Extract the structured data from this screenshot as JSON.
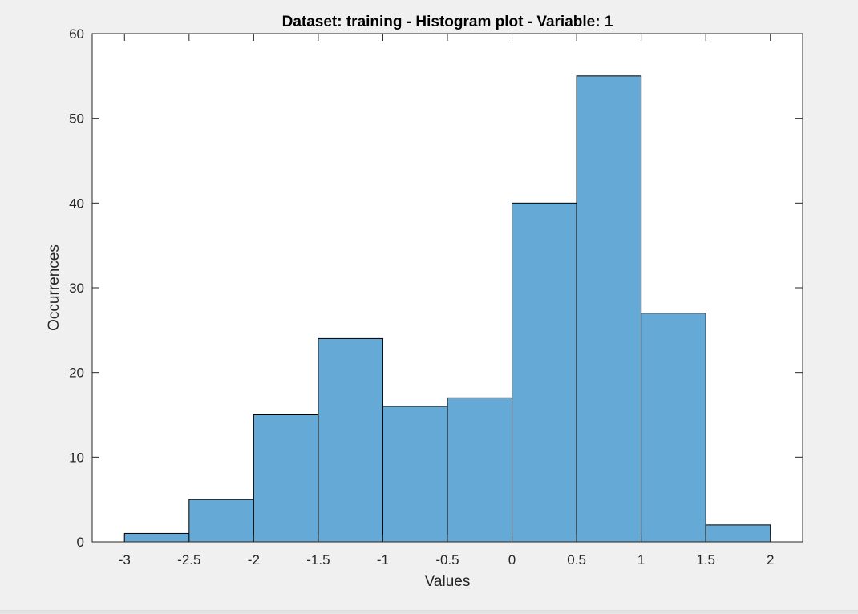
{
  "chart_data": {
    "type": "bar",
    "title": "Dataset: training - Histogram plot - Variable: 1",
    "xlabel": "Values",
    "ylabel": "Occurrences",
    "bin_edges": [
      -3,
      -2.5,
      -2,
      -1.5,
      -1,
      -0.5,
      0,
      0.5,
      1,
      1.5,
      2
    ],
    "values": [
      1,
      5,
      15,
      24,
      16,
      17,
      40,
      55,
      27,
      2
    ],
    "xlim": [
      -3.25,
      2.25
    ],
    "ylim": [
      0,
      60
    ],
    "x_ticks": [
      -3,
      -2.5,
      -2,
      -1.5,
      -1,
      -0.5,
      0,
      0.5,
      1,
      1.5,
      2
    ],
    "x_tick_labels": [
      "-3",
      "-2.5",
      "-2",
      "-1.5",
      "-1",
      "-0.5",
      "0",
      "0.5",
      "1",
      "1.5",
      "2"
    ],
    "y_ticks": [
      0,
      10,
      20,
      30,
      40,
      50,
      60
    ],
    "y_tick_labels": [
      "0",
      "10",
      "20",
      "30",
      "40",
      "50",
      "60"
    ],
    "grid": false,
    "legend": "none",
    "colors": {
      "bar_fill": "#65a9d7",
      "bar_edge": "#000000",
      "axes": "#262626",
      "background": "#ffffff",
      "window": "#f0f0f0"
    }
  }
}
